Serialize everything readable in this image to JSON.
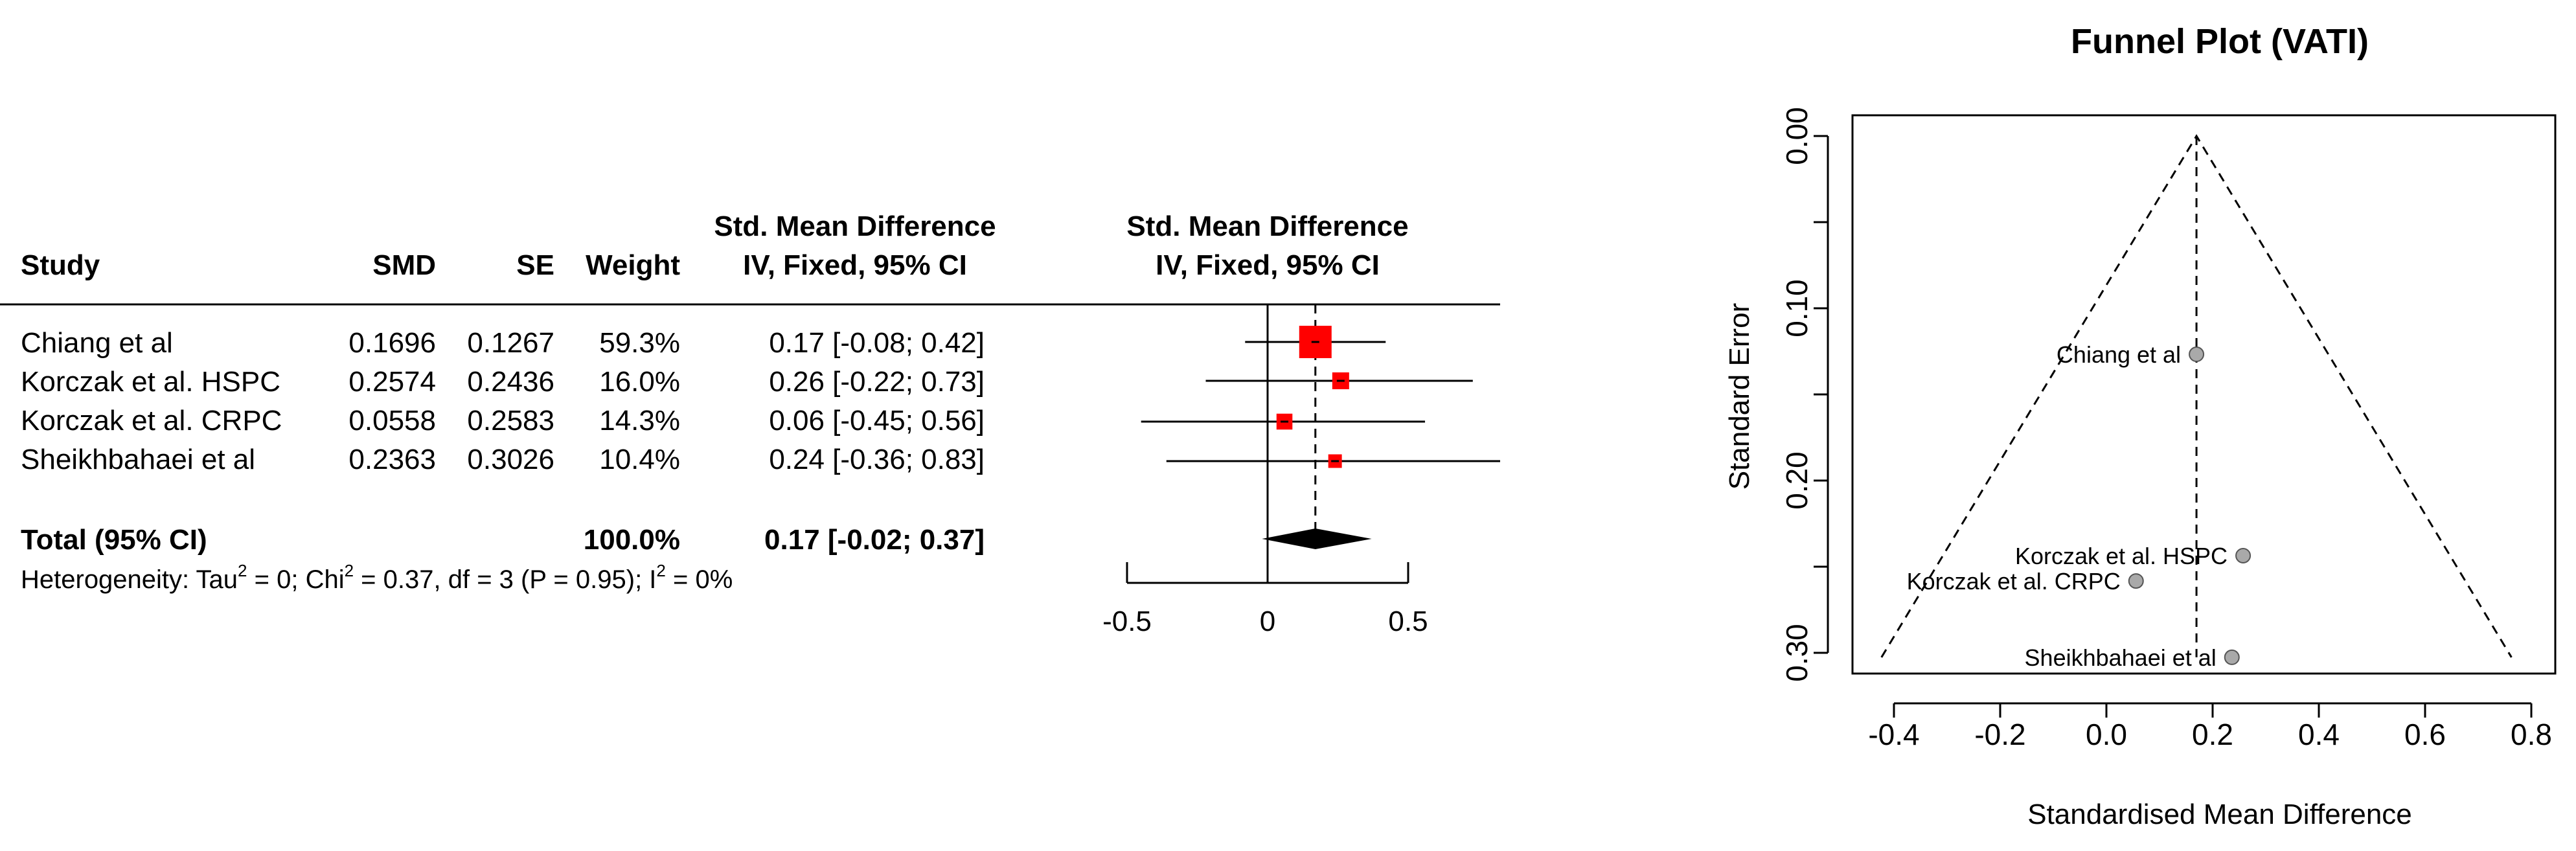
{
  "chart_data": [
    {
      "type": "forest",
      "column_headers": {
        "study": "Study",
        "smd": "SMD",
        "se": "SE",
        "weight": "Weight",
        "effect_line1": "Std. Mean Difference",
        "effect_line2": "IV, Fixed, 95% CI",
        "plot_line1": "Std. Mean Difference",
        "plot_line2": "IV, Fixed, 95% CI"
      },
      "studies": [
        {
          "name": "Chiang et al",
          "smd": 0.1696,
          "se": 0.1267,
          "smd_text": "0.1696",
          "se_text": "0.1267",
          "weight": 59.3,
          "weight_text": "59.3%",
          "ci_text": "0.17 [-0.08; 0.42]",
          "est": 0.17,
          "lo": -0.08,
          "hi": 0.42
        },
        {
          "name": "Korczak et al. HSPC",
          "smd": 0.2574,
          "se": 0.2436,
          "smd_text": "0.2574",
          "se_text": "0.2436",
          "weight": 16.0,
          "weight_text": "16.0%",
          "ci_text": "0.26 [-0.22; 0.73]",
          "est": 0.26,
          "lo": -0.22,
          "hi": 0.73
        },
        {
          "name": "Korczak et al. CRPC",
          "smd": 0.0558,
          "se": 0.2583,
          "smd_text": "0.0558",
          "se_text": "0.2583",
          "weight": 14.3,
          "weight_text": "14.3%",
          "ci_text": "0.06 [-0.45; 0.56]",
          "est": 0.06,
          "lo": -0.45,
          "hi": 0.56
        },
        {
          "name": "Sheikhbahaei et al",
          "smd": 0.2363,
          "se": 0.3026,
          "smd_text": "0.2363",
          "se_text": "0.3026",
          "weight": 10.4,
          "weight_text": "10.4%",
          "ci_text": "0.24 [-0.36; 0.83]",
          "est": 0.24,
          "lo": -0.36,
          "hi": 0.83
        }
      ],
      "total": {
        "label": "Total (95% CI)",
        "weight_text": "100.0%",
        "ci_text": "0.17 [-0.02; 0.37]",
        "est": 0.17,
        "lo": -0.02,
        "hi": 0.37
      },
      "heterogeneity": {
        "prefix": "Heterogeneity: Tau",
        "sup1": "2",
        "mid1": " = 0; Chi",
        "sup2": "2",
        "mid2": " = 0.37, df = 3 (P = 0.95); I",
        "sup3": "2",
        "suffix": " = 0%"
      },
      "x_ticks": [
        -0.5,
        0,
        0.5
      ],
      "x_tick_labels": [
        "-0.5",
        "0",
        "0.5"
      ],
      "xlim": [
        -0.5,
        0.5
      ],
      "colors": {
        "box": "#ff0000",
        "diamond": "#000000",
        "line": "#000000"
      }
    },
    {
      "type": "scatter",
      "subtype": "funnel",
      "title": "Funnel Plot (VATI)",
      "xlabel": "Standardised Mean Difference",
      "ylabel": "Standard Error",
      "xlim": [
        -0.45,
        0.8
      ],
      "ylim": [
        0.0,
        0.31
      ],
      "x_ticks": [
        -0.4,
        -0.2,
        0.0,
        0.2,
        0.4,
        0.6,
        0.8
      ],
      "x_tick_labels": [
        "-0.4",
        "-0.2",
        "0.0",
        "0.2",
        "0.4",
        "0.6",
        "0.8"
      ],
      "y_ticks": [
        0.0,
        0.1,
        0.2,
        0.3
      ],
      "y_tick_labels": [
        "0.00",
        "0.10",
        "0.20",
        "0.30"
      ],
      "pooled_estimate": 0.1696,
      "funnel_se_max": 0.3026,
      "points": [
        {
          "label": "Chiang et al",
          "x": 0.1696,
          "y": 0.1267,
          "label_side": "left"
        },
        {
          "label": "Korczak et al. HSPC",
          "x": 0.2574,
          "y": 0.2436,
          "label_side": "left"
        },
        {
          "label": "Korczak et al. CRPC",
          "x": 0.0558,
          "y": 0.2583,
          "label_side": "left"
        },
        {
          "label": "Sheikhbahaei et al",
          "x": 0.2363,
          "y": 0.3026,
          "label_side": "left"
        }
      ],
      "colors": {
        "point_fill": "#a9a9a9",
        "point_stroke": "#555555"
      }
    }
  ]
}
